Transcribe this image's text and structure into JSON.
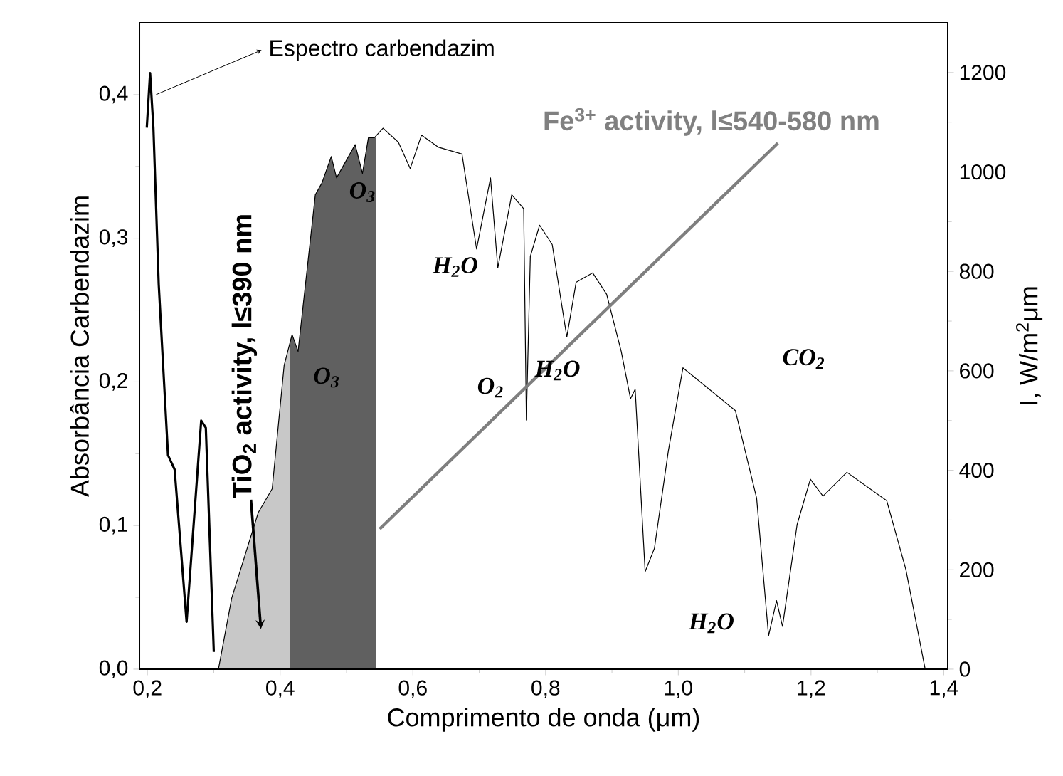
{
  "chart_data": {
    "type": "line",
    "xlabel": "Comprimento de onda (μm)",
    "ylabel": "Absorbância Carbendazim",
    "y2label": "I, W/m$^{2}$μm",
    "xlim": [
      0.188,
      1.406
    ],
    "ylim": [
      0,
      0.45
    ],
    "y2lim": [
      0,
      1300
    ],
    "xticks": [
      {
        "value": 0.2,
        "label": "0,2"
      },
      {
        "value": 0.4,
        "label": "0,4"
      },
      {
        "value": 0.6,
        "label": "0,6"
      },
      {
        "value": 0.8,
        "label": "0,8"
      },
      {
        "value": 1.0,
        "label": "1,0"
      },
      {
        "value": 1.2,
        "label": "1,2"
      },
      {
        "value": 1.4,
        "label": "1,4"
      }
    ],
    "yticks": [
      {
        "value": 0,
        "label": "0,0"
      },
      {
        "value": 0.1,
        "label": "0,1"
      },
      {
        "value": 0.2,
        "label": "0,2"
      },
      {
        "value": 0.3,
        "label": "0,3"
      },
      {
        "value": 0.4,
        "label": "0,4"
      }
    ],
    "y2ticks": [
      0,
      200,
      400,
      600,
      800,
      1000,
      1200
    ],
    "series": [
      {
        "type": "area",
        "axis": "y2",
        "color": "#c8c8c8",
        "x": [
          0.307,
          0.327,
          0.367,
          0.388,
          0.406,
          0.415
        ],
        "values": [
          0,
          143,
          315,
          363,
          611,
          660
        ]
      },
      {
        "type": "area",
        "axis": "y2",
        "color": "#606060",
        "x": [
          0.415,
          0.418,
          0.427,
          0.453,
          0.463,
          0.477,
          0.485,
          0.513,
          0.524,
          0.533,
          0.545
        ],
        "values": [
          660,
          673,
          639,
          954,
          978,
          1031,
          988,
          1055,
          997,
          1069,
          1069
        ]
      },
      {
        "axis": "y2",
        "color": "#000000",
        "x": [
          0.307,
          0.327,
          0.367,
          0.388,
          0.406,
          0.418,
          0.427,
          0.453,
          0.463,
          0.477,
          0.485,
          0.513,
          0.524,
          0.533,
          0.542,
          0.555,
          0.578,
          0.596,
          0.613,
          0.638,
          0.674,
          0.696,
          0.717,
          0.728,
          0.749,
          0.767,
          0.771,
          0.777,
          0.791,
          0.81,
          0.832,
          0.846,
          0.871,
          0.892,
          0.914,
          0.928,
          0.935,
          0.95,
          0.964,
          0.985,
          1.007,
          1.086,
          1.118,
          1.136,
          1.148,
          1.157,
          1.179,
          1.199,
          1.218,
          1.254,
          1.314,
          1.343,
          1.372
        ],
        "values": [
          0,
          143,
          315,
          363,
          611,
          673,
          639,
          954,
          978,
          1031,
          988,
          1055,
          997,
          1069,
          1069,
          1088,
          1060,
          1007,
          1074,
          1050,
          1036,
          845,
          988,
          807,
          954,
          926,
          501,
          830,
          893,
          854,
          668,
          778,
          797,
          754,
          639,
          544,
          563,
          196,
          243,
          439,
          606,
          520,
          344,
          67,
          138,
          86,
          291,
          382,
          348,
          396,
          339,
          200,
          0
        ]
      },
      {
        "axis": "y2",
        "color": "#7f7f7f",
        "x": [
          0.55,
          1.15
        ],
        "values": [
          282,
          1058
        ]
      },
      {
        "axis": "y",
        "color": "#000000",
        "x": [
          0.199,
          0.204,
          0.209,
          0.217,
          0.231,
          0.241,
          0.259,
          0.281,
          0.288,
          0.3
        ],
        "values": [
          0.377,
          0.415,
          0.377,
          0.268,
          0.149,
          0.139,
          0.033,
          0.173,
          0.168,
          0.012
        ]
      }
    ],
    "annotations": [
      {
        "text": "Espectro carbendazim",
        "x": 0.213,
        "y": 0.4
      },
      "TiO$_{2}$ activity, l≤390 nm",
      "Fe$^{3+}$ activity, l≤540-580 nm",
      "O$_{3}$",
      "O$_{3}$",
      "H$_{2}$O",
      "O$_{2}$",
      "H$_{2}$O",
      "CO$_{2}$",
      "H$_{2}$O"
    ]
  }
}
